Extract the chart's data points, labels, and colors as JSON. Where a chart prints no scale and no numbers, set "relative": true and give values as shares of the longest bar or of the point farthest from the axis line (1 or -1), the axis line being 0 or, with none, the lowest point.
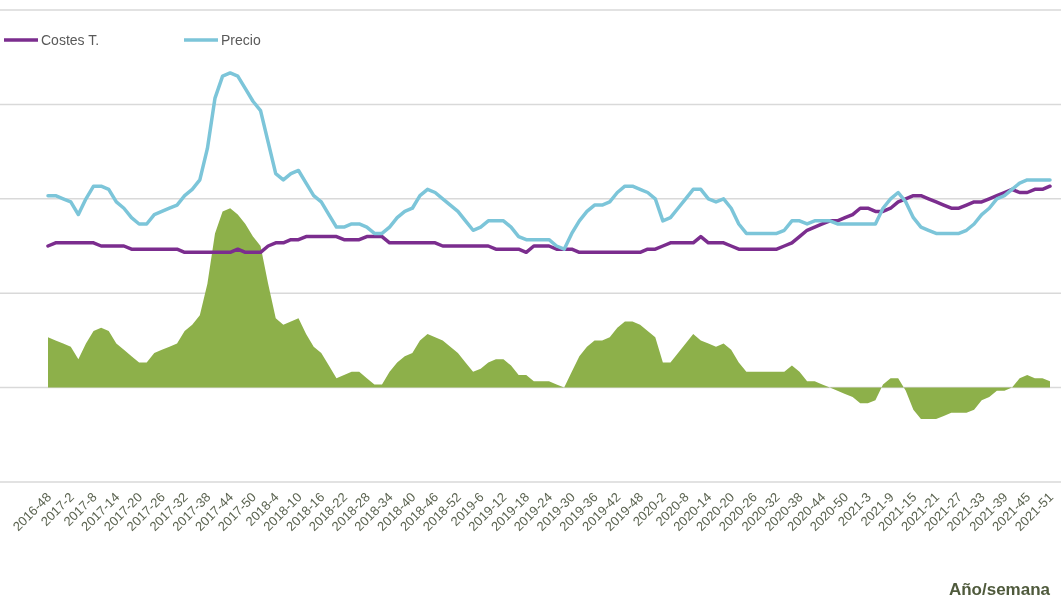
{
  "chart_data": {
    "type": "line",
    "relative": true,
    "grid": true,
    "legend": "top left",
    "xlabel": "Año/semana",
    "categories": [
      "2016-48",
      null,
      null,
      "2017-2",
      null,
      null,
      "2017-8",
      null,
      null,
      "2017-14",
      null,
      null,
      "2017-20",
      null,
      null,
      "2017-26",
      null,
      null,
      "2017-32",
      null,
      null,
      "2017-38",
      null,
      null,
      "2017-44",
      null,
      null,
      "2017-50",
      null,
      null,
      "2018-4",
      null,
      null,
      "2018-10",
      null,
      null,
      "2018-16",
      null,
      null,
      "2018-22",
      null,
      null,
      "2018-28",
      null,
      null,
      "2018-34",
      null,
      null,
      "2018-40",
      null,
      null,
      "2018-46",
      null,
      null,
      "2018-52",
      null,
      null,
      "2019-6",
      null,
      null,
      "2019-12",
      null,
      null,
      "2019-18",
      null,
      null,
      "2019-24",
      null,
      null,
      "2019-30",
      null,
      null,
      "2019-36",
      null,
      null,
      "2019-42",
      null,
      null,
      "2019-48",
      null,
      null,
      "2020-2",
      null,
      null,
      "2020-8",
      null,
      null,
      "2020-14",
      null,
      null,
      "2020-20",
      null,
      null,
      "2020-26",
      null,
      null,
      "2020-32",
      null,
      null,
      "2020-38",
      null,
      null,
      "2020-44",
      null,
      null,
      "2020-50",
      null,
      null,
      "2021-3",
      null,
      null,
      "2021-9",
      null,
      null,
      "2021-15",
      null,
      null,
      "2021-21",
      null,
      null,
      "2021-27",
      null,
      null,
      "2021-33",
      null,
      null,
      "2021-39",
      null,
      null,
      "2021-45",
      null,
      null,
      "2021-51"
    ],
    "series": [
      {
        "type": "area",
        "color": "#8db04a",
        "values": [
          0.16,
          0.15,
          0.14,
          0.13,
          0.09,
          0.14,
          0.18,
          0.19,
          0.18,
          0.14,
          0.12,
          0.1,
          0.08,
          0.08,
          0.11,
          0.12,
          0.13,
          0.14,
          0.18,
          0.2,
          0.23,
          0.33,
          0.49,
          0.56,
          0.57,
          0.55,
          0.52,
          0.48,
          0.45,
          0.33,
          0.22,
          0.2,
          0.21,
          0.22,
          0.17,
          0.13,
          0.11,
          0.07,
          0.03,
          0.04,
          0.05,
          0.05,
          0.03,
          0.01,
          0.01,
          0.05,
          0.08,
          0.1,
          0.11,
          0.15,
          0.17,
          0.16,
          0.15,
          0.13,
          0.11,
          0.08,
          0.05,
          0.06,
          0.08,
          0.09,
          0.09,
          0.07,
          0.04,
          0.04,
          0.02,
          0.02,
          0.02,
          0.01,
          0,
          0.05,
          0.1,
          0.13,
          0.15,
          0.15,
          0.16,
          0.19,
          0.21,
          0.21,
          0.2,
          0.18,
          0.16,
          0.08,
          0.08,
          0.11,
          0.14,
          0.17,
          0.15,
          0.14,
          0.13,
          0.14,
          0.12,
          0.08,
          0.05,
          0.05,
          0.05,
          0.05,
          0.05,
          0.05,
          0.07,
          0.05,
          0.02,
          0.02,
          0.01,
          0,
          -0.01,
          -0.02,
          -0.03,
          -0.05,
          -0.05,
          -0.04,
          0.01,
          0.03,
          0.03,
          -0.01,
          -0.07,
          -0.1,
          -0.1,
          -0.1,
          -0.09,
          -0.08,
          -0.08,
          -0.08,
          -0.07,
          -0.04,
          -0.03,
          -0.01,
          -0.01,
          0,
          0.03,
          0.04,
          0.03,
          0.03,
          0.02
        ]
      },
      {
        "name": "Costes T.",
        "color": "#7b2d8e",
        "values": [
          0.45,
          0.46,
          0.46,
          0.46,
          0.46,
          0.46,
          0.46,
          0.45,
          0.45,
          0.45,
          0.45,
          0.44,
          0.44,
          0.44,
          0.44,
          0.44,
          0.44,
          0.44,
          0.43,
          0.43,
          0.43,
          0.43,
          0.43,
          0.43,
          0.43,
          0.44,
          0.43,
          0.43,
          0.43,
          0.45,
          0.46,
          0.46,
          0.47,
          0.47,
          0.48,
          0.48,
          0.48,
          0.48,
          0.48,
          0.47,
          0.47,
          0.47,
          0.48,
          0.48,
          0.48,
          0.46,
          0.46,
          0.46,
          0.46,
          0.46,
          0.46,
          0.46,
          0.45,
          0.45,
          0.45,
          0.45,
          0.45,
          0.45,
          0.45,
          0.44,
          0.44,
          0.44,
          0.44,
          0.43,
          0.45,
          0.45,
          0.45,
          0.44,
          0.44,
          0.44,
          0.43,
          0.43,
          0.43,
          0.43,
          0.43,
          0.43,
          0.43,
          0.43,
          0.43,
          0.44,
          0.44,
          0.45,
          0.46,
          0.46,
          0.46,
          0.46,
          0.48,
          0.46,
          0.46,
          0.46,
          0.45,
          0.44,
          0.44,
          0.44,
          0.44,
          0.44,
          0.44,
          0.45,
          0.46,
          0.48,
          0.5,
          0.51,
          0.52,
          0.53,
          0.53,
          0.54,
          0.55,
          0.57,
          0.57,
          0.56,
          0.56,
          0.57,
          0.59,
          0.6,
          0.61,
          0.61,
          0.6,
          0.59,
          0.58,
          0.57,
          0.57,
          0.58,
          0.59,
          0.59,
          0.6,
          0.61,
          0.62,
          0.63,
          0.62,
          0.62,
          0.63,
          0.63,
          0.64
        ]
      },
      {
        "name": "Precio",
        "color": "#7cc5d9",
        "values": [
          0.61,
          0.61,
          0.6,
          0.59,
          0.55,
          0.6,
          0.64,
          0.64,
          0.63,
          0.59,
          0.57,
          0.54,
          0.52,
          0.52,
          0.55,
          0.56,
          0.57,
          0.58,
          0.61,
          0.63,
          0.66,
          0.76,
          0.92,
          0.99,
          1.0,
          0.99,
          0.95,
          0.91,
          0.88,
          0.78,
          0.68,
          0.66,
          0.68,
          0.69,
          0.65,
          0.61,
          0.59,
          0.55,
          0.51,
          0.51,
          0.52,
          0.52,
          0.51,
          0.49,
          0.49,
          0.51,
          0.54,
          0.56,
          0.57,
          0.61,
          0.63,
          0.62,
          0.6,
          0.58,
          0.56,
          0.53,
          0.5,
          0.51,
          0.53,
          0.53,
          0.53,
          0.51,
          0.48,
          0.47,
          0.47,
          0.47,
          0.47,
          0.45,
          0.44,
          0.49,
          0.53,
          0.56,
          0.58,
          0.58,
          0.59,
          0.62,
          0.64,
          0.64,
          0.63,
          0.62,
          0.6,
          0.53,
          0.54,
          0.57,
          0.6,
          0.63,
          0.63,
          0.6,
          0.59,
          0.6,
          0.57,
          0.52,
          0.49,
          0.49,
          0.49,
          0.49,
          0.49,
          0.5,
          0.53,
          0.53,
          0.52,
          0.53,
          0.53,
          0.53,
          0.52,
          0.52,
          0.52,
          0.52,
          0.52,
          0.52,
          0.57,
          0.6,
          0.62,
          0.59,
          0.54,
          0.51,
          0.5,
          0.49,
          0.49,
          0.49,
          0.49,
          0.5,
          0.52,
          0.55,
          0.57,
          0.6,
          0.61,
          0.63,
          0.65,
          0.66,
          0.66,
          0.66,
          0.66
        ]
      }
    ]
  }
}
